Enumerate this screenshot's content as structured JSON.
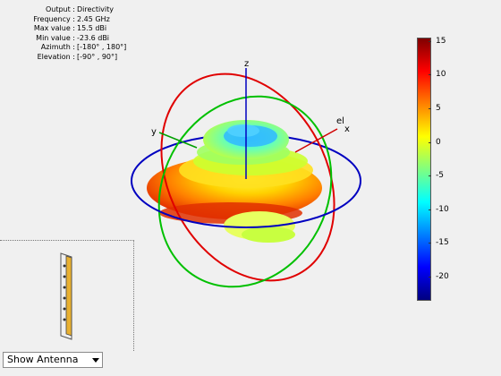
{
  "info": {
    "rows": [
      {
        "key": "Output :",
        "value": "Directivity"
      },
      {
        "key": "Frequency :",
        "value": "2.45 GHz"
      },
      {
        "key": "Max value :",
        "value": "15.5 dBi"
      },
      {
        "key": "Min value :",
        "value": "-23.6 dBi"
      },
      {
        "key": "Azimuth :",
        "value": "[-180° , 180°]"
      },
      {
        "key": "Elevation :",
        "value": "[-90° , 90°]"
      }
    ]
  },
  "axes": {
    "z_label": "z",
    "y_label": "y",
    "x_label": "x",
    "el_label": "el"
  },
  "colorbar": {
    "ticks": [
      "15",
      "10",
      "5",
      "0",
      "-5",
      "-10",
      "-15",
      "-20"
    ],
    "colors": [
      "#7f0000",
      "#ff0000",
      "#ff8000",
      "#ffff00",
      "#80ff80",
      "#00ffff",
      "#0080ff",
      "#0000ff",
      "#00007f"
    ]
  },
  "dropdown": {
    "selected": "Show Antenna"
  },
  "colors": {
    "elevation_ring": "#e00000",
    "azimuth_ring": "#00c000",
    "horizon_ring": "#0000c0",
    "z_axis": "#0000c0",
    "x_axis": "#d00000",
    "y_axis": "#00a000",
    "antenna_fill": "#e8b030"
  }
}
